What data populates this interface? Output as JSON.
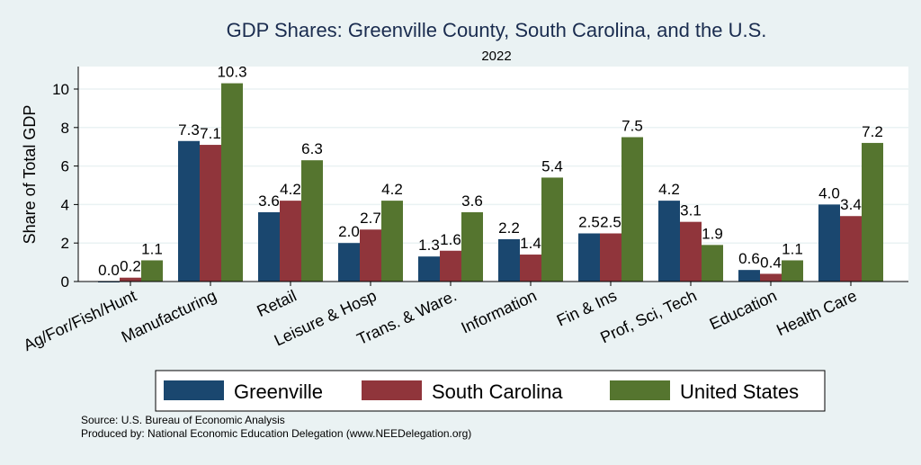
{
  "chart_data": {
    "type": "bar",
    "title": "GDP Shares: Greenville County, South Carolina, and the U.S.",
    "subtitle": "2022",
    "xlabel": "",
    "ylabel": "Share of Total GDP",
    "ylim": [
      0,
      11
    ],
    "yticks": [
      0,
      2,
      4,
      6,
      8,
      10
    ],
    "grid": true,
    "legend_position": "bottom",
    "categories": [
      "Ag/For/Fish/Hunt",
      "Manufacturing",
      "Retail",
      "Leisure & Hosp",
      "Trans. & Ware.",
      "Information",
      "Fin & Ins",
      "Prof, Sci, Tech",
      "Education",
      "Health Care"
    ],
    "series": [
      {
        "name": "Greenville",
        "color": "#1a476f",
        "values": [
          0.0,
          7.3,
          3.6,
          2.0,
          1.3,
          2.2,
          2.5,
          4.2,
          0.6,
          4.0
        ]
      },
      {
        "name": "South Carolina",
        "color": "#90353b",
        "values": [
          0.2,
          7.1,
          4.2,
          2.7,
          1.6,
          1.4,
          2.5,
          3.1,
          0.4,
          3.4
        ]
      },
      {
        "name": "United States",
        "color": "#55752f",
        "values": [
          1.1,
          10.3,
          6.3,
          4.2,
          3.6,
          5.4,
          7.5,
          1.9,
          1.1,
          7.2
        ]
      }
    ]
  },
  "notes": {
    "source": "Source: U.S. Bureau of Economic Analysis",
    "produced_by": "Produced by: National Economic Education Delegation (www.NEEDelegation.org)"
  }
}
